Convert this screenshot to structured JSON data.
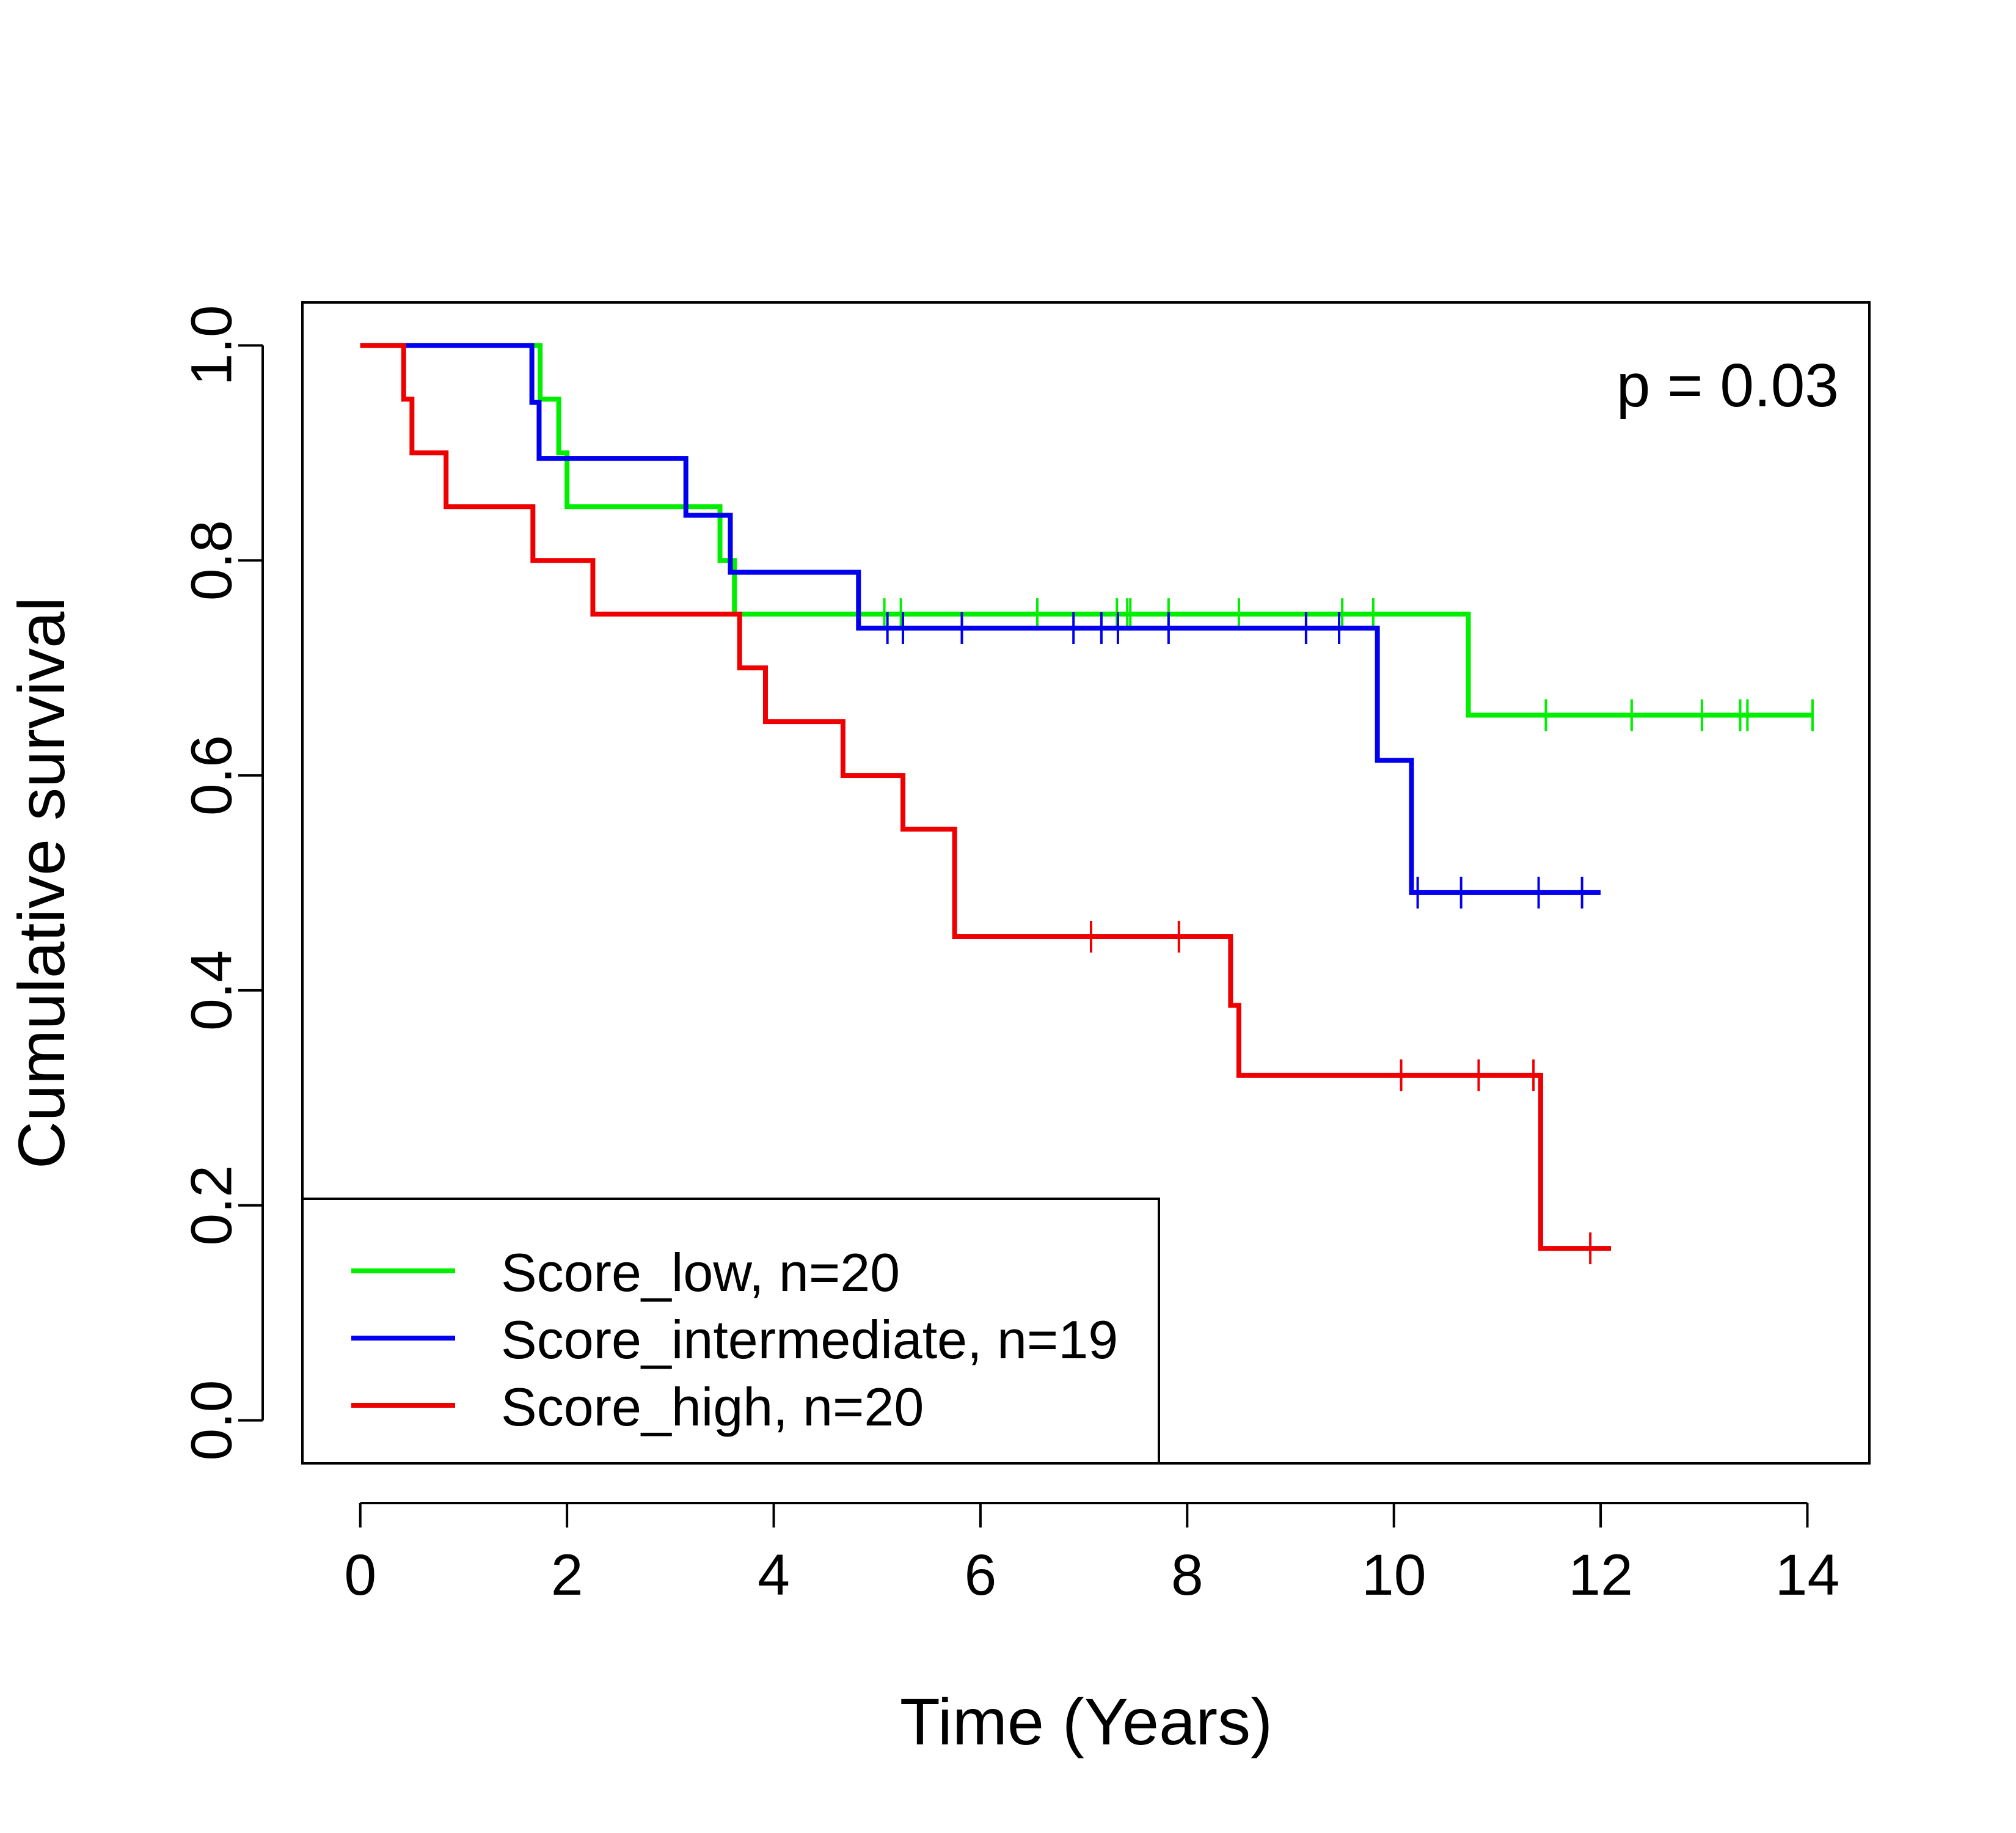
{
  "chart_data": {
    "type": "line",
    "subtype": "kaplan-meier-step",
    "xlabel": "Time (Years)",
    "ylabel": "Cumulative survival",
    "xlim": [
      -0.56,
      14.6
    ],
    "ylim": [
      -0.04,
      1.04
    ],
    "xticks": [
      0,
      2,
      4,
      6,
      8,
      10,
      12,
      14
    ],
    "yticks": [
      0.0,
      0.2,
      0.4,
      0.6,
      0.8,
      1.0
    ],
    "xtick_labels": [
      "0",
      "2",
      "4",
      "6",
      "8",
      "10",
      "12",
      "14"
    ],
    "ytick_labels": [
      "0.0",
      "0.2",
      "0.4",
      "0.6",
      "0.8",
      "1.0"
    ],
    "grid": false,
    "legend_position": "bottom-left",
    "annotation": "p = 0.03",
    "series": [
      {
        "name": "Score_low, n=20",
        "color": "#00ee00",
        "steps": [
          [
            0,
            1.0
          ],
          [
            1.74,
            0.95
          ],
          [
            1.92,
            0.9
          ],
          [
            2.0,
            0.85
          ],
          [
            3.48,
            0.8
          ],
          [
            3.62,
            0.75
          ],
          [
            10.72,
            0.656
          ]
        ],
        "end_x": 14.05,
        "censor": [
          5.07,
          5.23,
          6.55,
          7.32,
          7.42,
          7.45,
          7.82,
          8.5,
          9.5,
          9.8,
          11.47,
          12.3,
          12.98,
          13.35,
          13.42,
          14.05
        ]
      },
      {
        "name": "Score_intermediate, n=19",
        "color": "#0000ee",
        "steps": [
          [
            0,
            1.0
          ],
          [
            1.66,
            0.947
          ],
          [
            1.73,
            0.895
          ],
          [
            3.15,
            0.842
          ],
          [
            3.58,
            0.789
          ],
          [
            4.82,
            0.737
          ],
          [
            9.84,
            0.614
          ],
          [
            10.17,
            0.491
          ]
        ],
        "end_x": 12.0,
        "censor": [
          5.1,
          5.25,
          5.82,
          6.9,
          7.17,
          7.33,
          7.82,
          9.15,
          9.47,
          10.23,
          10.65,
          11.4,
          11.82
        ]
      },
      {
        "name": "Score_high, n=20",
        "color": "#ee0000",
        "steps": [
          [
            0,
            1.0
          ],
          [
            0.42,
            0.95
          ],
          [
            0.5,
            0.9
          ],
          [
            0.83,
            0.85
          ],
          [
            1.67,
            0.8
          ],
          [
            2.25,
            0.75
          ],
          [
            3.67,
            0.7
          ],
          [
            3.92,
            0.65
          ],
          [
            4.67,
            0.6
          ],
          [
            5.25,
            0.55
          ],
          [
            5.75,
            0.45
          ],
          [
            8.42,
            0.386
          ],
          [
            8.5,
            0.321
          ],
          [
            11.42,
            0.16
          ]
        ],
        "end_x": 12.1,
        "censor": [
          7.07,
          7.92,
          10.07,
          10.82,
          11.35,
          11.9
        ]
      }
    ]
  }
}
